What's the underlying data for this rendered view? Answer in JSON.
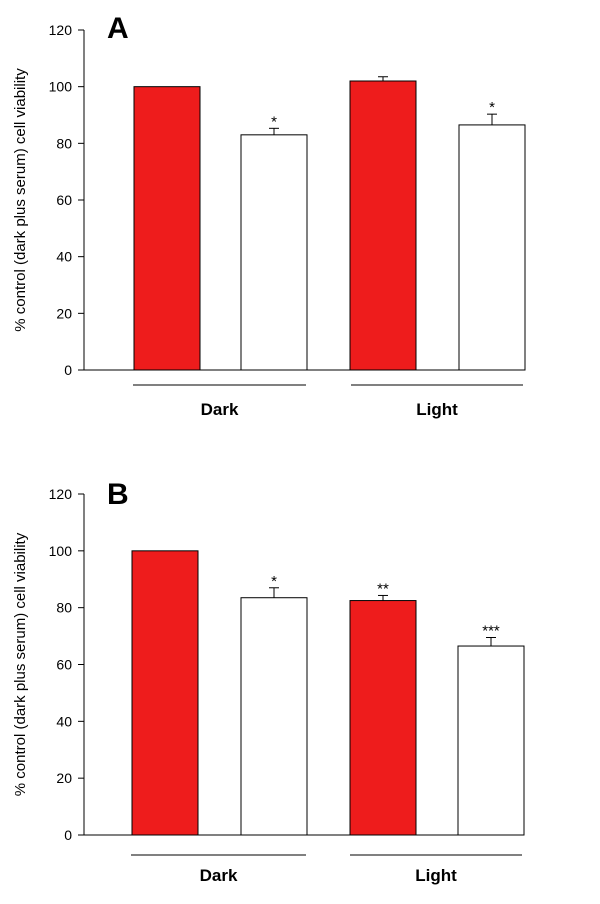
{
  "chart_data": [
    {
      "type": "bar",
      "panel_label": "A",
      "ylabel": "% control (dark plus serum) cell viability",
      "ylim": [
        0,
        120
      ],
      "yticks": [
        0,
        20,
        40,
        60,
        80,
        100,
        120
      ],
      "groups": [
        "Dark",
        "Light"
      ],
      "series_colors": [
        "#ee1c1c",
        "#ffffff"
      ],
      "bars": [
        {
          "group": "Dark",
          "series": 0,
          "value": 100,
          "error": 0,
          "sig": ""
        },
        {
          "group": "Dark",
          "series": 1,
          "value": 83,
          "error": 2.3,
          "sig": "*"
        },
        {
          "group": "Light",
          "series": 0,
          "value": 102,
          "error": 1.5,
          "sig": ""
        },
        {
          "group": "Light",
          "series": 1,
          "value": 86.5,
          "error": 3.8,
          "sig": "*"
        }
      ]
    },
    {
      "type": "bar",
      "panel_label": "B",
      "ylabel": "% control (dark plus serum) cell viability",
      "ylim": [
        0,
        120
      ],
      "yticks": [
        0,
        20,
        40,
        60,
        80,
        100,
        120
      ],
      "groups": [
        "Dark",
        "Light"
      ],
      "series_colors": [
        "#ee1c1c",
        "#ffffff"
      ],
      "bars": [
        {
          "group": "Dark",
          "series": 0,
          "value": 100,
          "error": 0,
          "sig": ""
        },
        {
          "group": "Dark",
          "series": 1,
          "value": 83.5,
          "error": 3.5,
          "sig": "*"
        },
        {
          "group": "Light",
          "series": 0,
          "value": 82.5,
          "error": 1.8,
          "sig": "**"
        },
        {
          "group": "Light",
          "series": 1,
          "value": 66.5,
          "error": 3.0,
          "sig": "***"
        }
      ]
    }
  ]
}
